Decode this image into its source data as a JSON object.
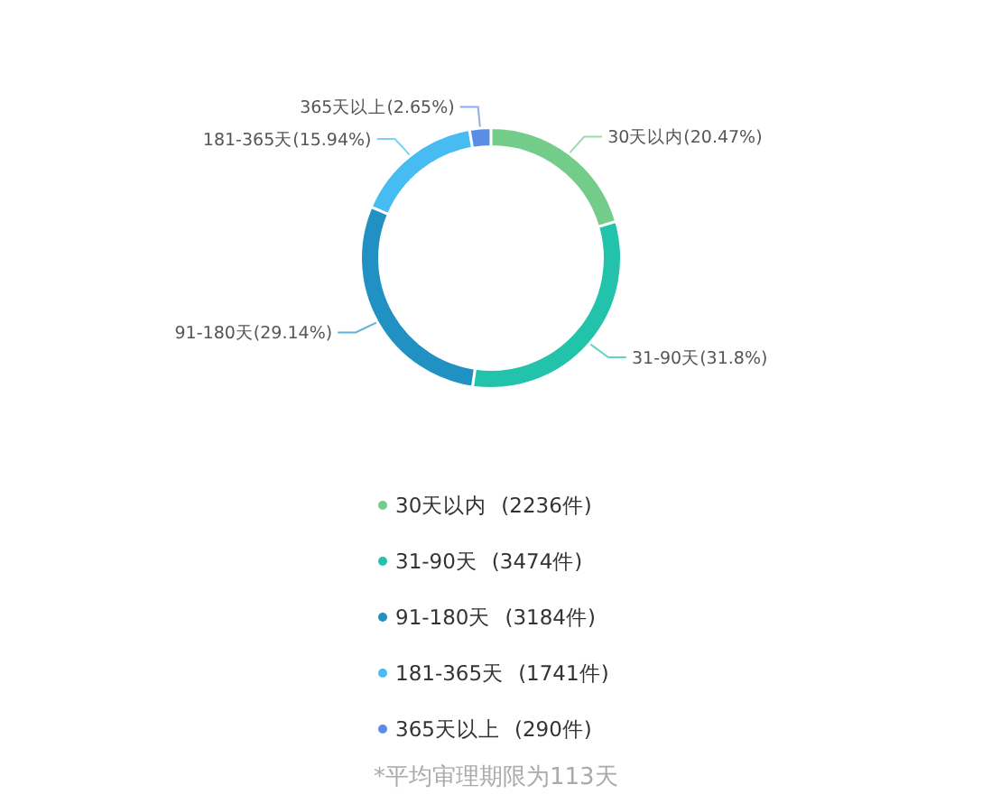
{
  "chart_data": {
    "type": "donut",
    "categories": [
      "30天以内",
      "31-90天",
      "91-180天",
      "181-365天",
      "365天以上"
    ],
    "values": [
      2236,
      3474,
      3184,
      1741,
      290
    ],
    "colors": [
      "#74cc8a",
      "#22c3aa",
      "#2190c2",
      "#47bcf2",
      "#5a8de6"
    ],
    "value_labels": [
      "(2236件)",
      "(3474件)",
      "(3184件)",
      "(1741件)",
      "(290件)"
    ],
    "annotations": [
      "30天以内(20.47%)",
      "31-90天(31.8%)",
      "91-180天(29.14%)",
      "181-365天(15.94%)",
      "365天以上(2.65%)",
      "*平均审理期限为113天"
    ],
    "legend": "bottom"
  }
}
